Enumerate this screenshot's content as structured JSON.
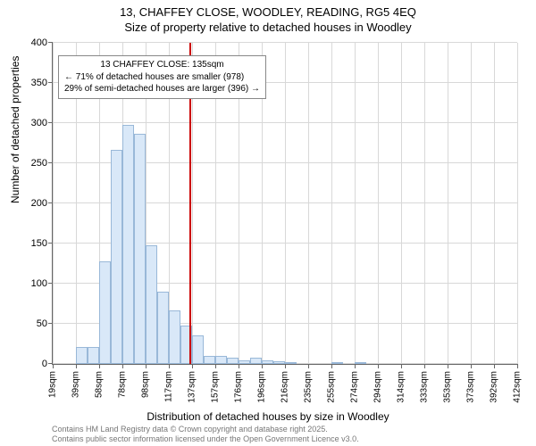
{
  "title_line1": "13, CHAFFEY CLOSE, WOODLEY, READING, RG5 4EQ",
  "title_line2": "Size of property relative to detached houses in Woodley",
  "y_axis_title": "Number of detached properties",
  "x_axis_title": "Distribution of detached houses by size in Woodley",
  "chart": {
    "type": "histogram",
    "background_color": "#ffffff",
    "grid_color": "#d8d8d8",
    "axis_color": "#666666",
    "bar_fill": "#d9e8f8",
    "bar_border": "#99b8d8",
    "marker_color": "#cc0000",
    "marker_value": 135,
    "ylim": [
      0,
      400
    ],
    "ytick_step": 50,
    "y_ticks": [
      0,
      50,
      100,
      150,
      200,
      250,
      300,
      350,
      400
    ],
    "x_ticks": [
      "19sqm",
      "39sqm",
      "58sqm",
      "78sqm",
      "98sqm",
      "117sqm",
      "137sqm",
      "157sqm",
      "176sqm",
      "196sqm",
      "216sqm",
      "235sqm",
      "255sqm",
      "274sqm",
      "294sqm",
      "314sqm",
      "333sqm",
      "353sqm",
      "373sqm",
      "392sqm",
      "412sqm"
    ],
    "values": [
      0,
      0,
      21,
      21,
      128,
      267,
      298,
      287,
      148,
      90,
      67,
      48,
      36,
      10,
      10,
      8,
      5,
      8,
      5,
      3,
      2,
      0,
      0,
      0,
      2,
      0,
      2,
      0,
      0,
      0,
      0,
      0,
      0,
      0,
      0,
      0,
      0,
      0,
      0,
      0,
      0
    ]
  },
  "annotation": {
    "line1": "13 CHAFFEY CLOSE: 135sqm",
    "line2": "← 71% of detached houses are smaller (978)",
    "line3": "29% of semi-detached houses are larger (396) →"
  },
  "footer_line1": "Contains HM Land Registry data © Crown copyright and database right 2025.",
  "footer_line2": "Contains public sector information licensed under the Open Government Licence v3.0."
}
